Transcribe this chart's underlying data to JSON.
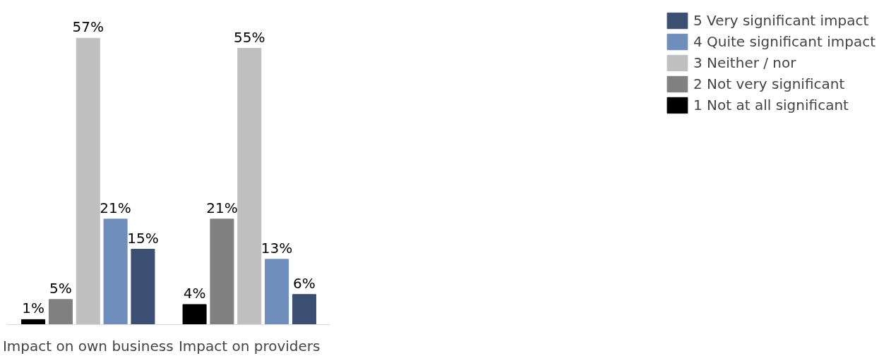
{
  "chart_data": {
    "type": "bar",
    "categories": [
      "Impact on own business",
      "Impact on providers"
    ],
    "series": [
      {
        "name": "1 Not at all significant",
        "color": "#000000",
        "values": [
          1,
          4
        ],
        "value_labels": [
          "1%",
          "4%"
        ]
      },
      {
        "name": "2 Not very significant",
        "color": "#808080",
        "values": [
          5,
          21
        ],
        "value_labels": [
          "5%",
          "21%"
        ]
      },
      {
        "name": "3 Neither / nor",
        "color": "#c0c0c0",
        "values": [
          57,
          55
        ],
        "value_labels": [
          "57%",
          "55%"
        ]
      },
      {
        "name": "4 Quite significant impact",
        "color": "#6e8ebb",
        "values": [
          21,
          13
        ],
        "value_labels": [
          "21%",
          "13%"
        ]
      },
      {
        "name": "5 Very significant impact",
        "color": "#3a4f72",
        "values": [
          15,
          6
        ],
        "value_labels": [
          "15%",
          "6%"
        ]
      }
    ],
    "legend": "right",
    "grid": false
  }
}
